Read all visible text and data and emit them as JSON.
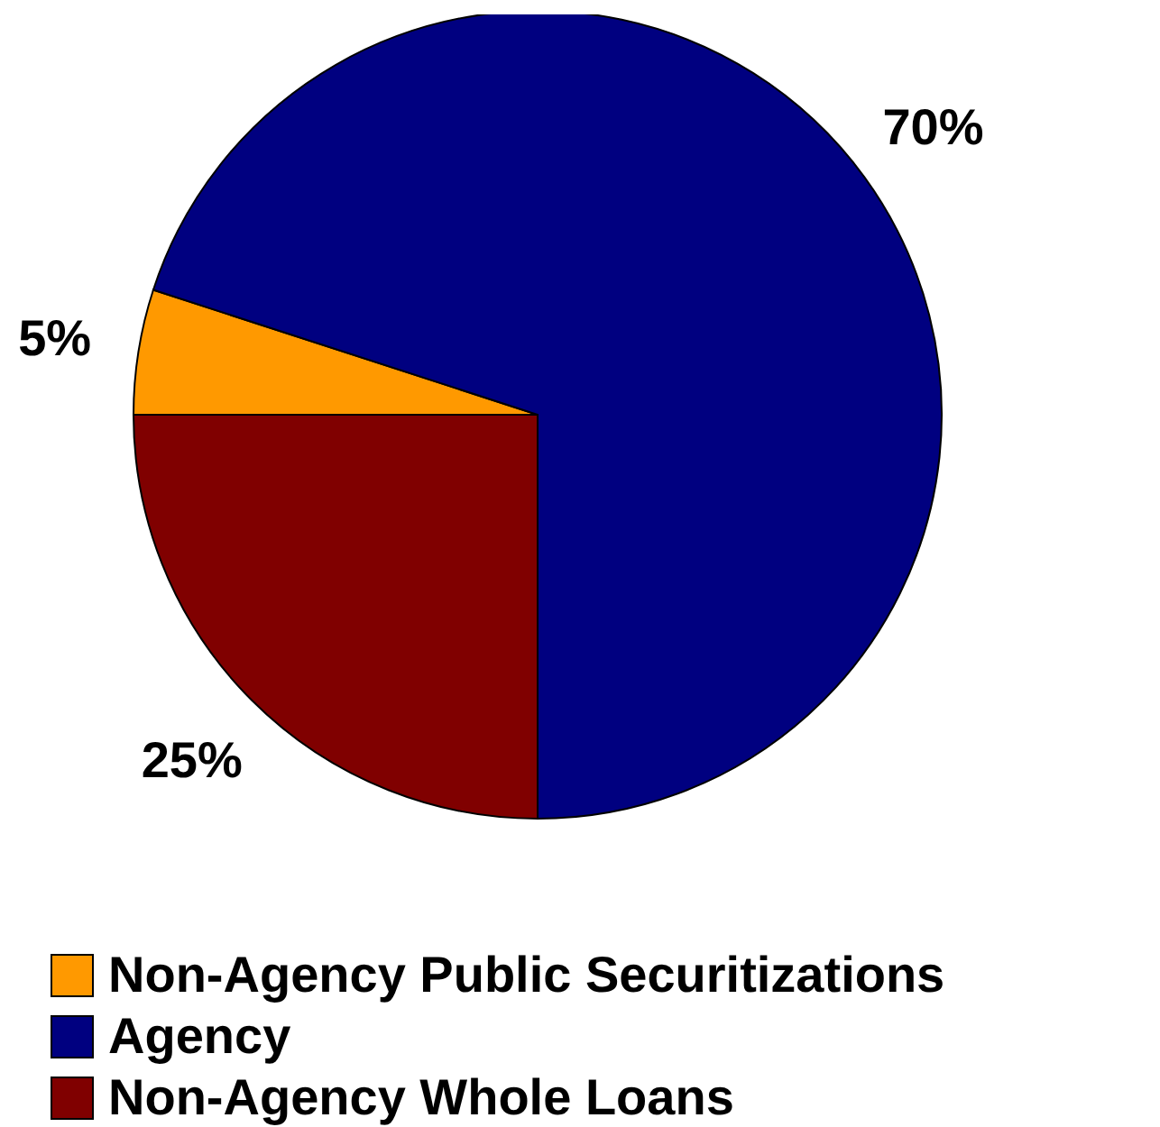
{
  "chart_data": {
    "type": "pie",
    "categories": [
      "Non-Agency Public Securitizations",
      "Agency",
      "Non-Agency Whole Loans"
    ],
    "values": [
      5,
      70,
      25
    ],
    "colors": [
      "#ff9900",
      "#000080",
      "#800000"
    ],
    "value_labels": [
      "5%",
      "70%",
      "25%"
    ],
    "legend": "bottom left"
  }
}
